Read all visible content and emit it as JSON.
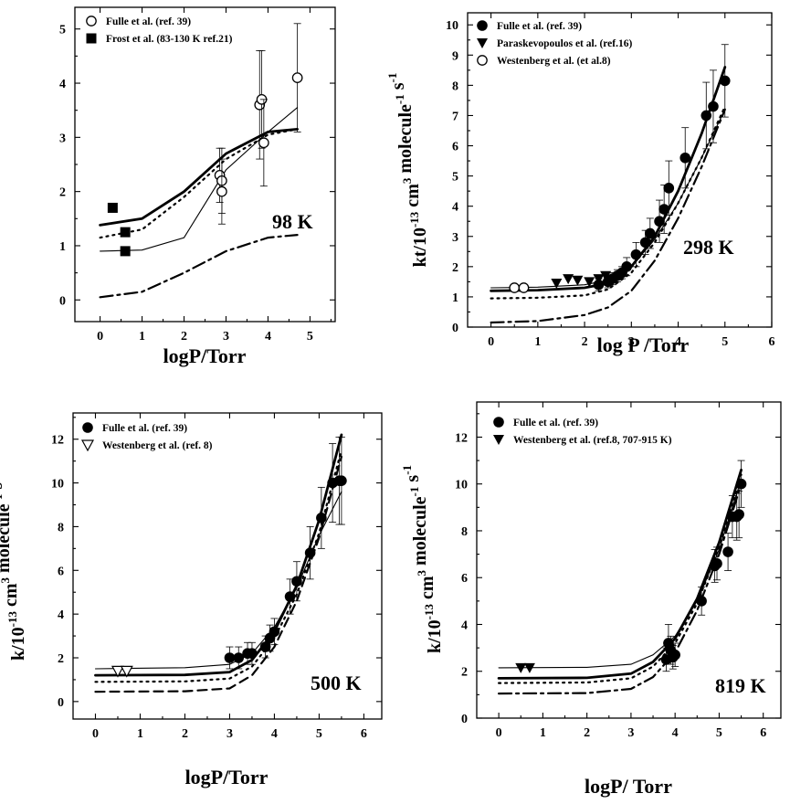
{
  "chart_data": [
    {
      "type": "scatter",
      "temperature": "98 K",
      "xlabel": "logP/Torr",
      "ylabel": "",
      "xlim": [
        -0.6,
        5.6
      ],
      "ylim": [
        -0.4,
        5.4
      ],
      "xticks": [
        0,
        1,
        2,
        3,
        4,
        5
      ],
      "yticks": [
        0,
        1,
        2,
        3,
        4,
        5
      ],
      "legend_position": "top-left",
      "series": [
        {
          "name": "Fulle et al. (ref. 39)",
          "marker": "circle-open",
          "points": [
            [
              2.85,
              2.3,
              0.5
            ],
            [
              2.9,
              2.2,
              0.6
            ],
            [
              2.9,
              2.0,
              0.6
            ],
            [
              3.8,
              3.6,
              1.0
            ],
            [
              3.85,
              3.7,
              0.9
            ],
            [
              3.9,
              2.9,
              0.8
            ],
            [
              4.7,
              4.1,
              1.0
            ]
          ]
        },
        {
          "name": "Frost et al. (83-130 K ref.21)",
          "marker": "square-filled",
          "points": [
            [
              0.3,
              1.7,
              0
            ],
            [
              0.6,
              1.25,
              0
            ],
            [
              0.6,
              0.9,
              0
            ]
          ]
        }
      ],
      "curves": [
        {
          "style": "thick-solid",
          "points": [
            [
              0,
              1.38
            ],
            [
              1,
              1.5
            ],
            [
              2,
              2.0
            ],
            [
              3,
              2.7
            ],
            [
              4,
              3.1
            ],
            [
              4.7,
              3.15
            ]
          ]
        },
        {
          "style": "dotted",
          "points": [
            [
              0,
              1.15
            ],
            [
              1,
              1.3
            ],
            [
              2,
              1.9
            ],
            [
              3,
              2.6
            ],
            [
              4,
              3.05
            ],
            [
              4.7,
              3.15
            ]
          ]
        },
        {
          "style": "thin-solid",
          "points": [
            [
              0,
              0.9
            ],
            [
              1,
              0.92
            ],
            [
              2,
              1.15
            ],
            [
              3,
              2.4
            ],
            [
              4,
              3.1
            ],
            [
              4.7,
              3.55
            ]
          ]
        },
        {
          "style": "dash-dot",
          "points": [
            [
              0,
              0.05
            ],
            [
              1,
              0.15
            ],
            [
              2,
              0.5
            ],
            [
              3,
              0.9
            ],
            [
              4,
              1.15
            ],
            [
              4.7,
              1.2
            ]
          ]
        }
      ]
    },
    {
      "type": "scatter",
      "temperature": "298 K",
      "xlabel": "log P /Torr",
      "ylabel": "kt/10",
      "ylabel_exp1": "-13",
      "ylabel_mid": " cm",
      "ylabel_exp2": "3",
      "ylabel_tail": " molecule",
      "ylabel_exp3": "-1",
      "ylabel_s": "s",
      "ylabel_exp4": "-1",
      "xlim": [
        -0.5,
        6.0
      ],
      "ylim": [
        0,
        10.4
      ],
      "xticks": [
        0,
        1,
        2,
        3,
        4,
        5,
        6
      ],
      "yticks": [
        0,
        1,
        2,
        3,
        4,
        5,
        6,
        7,
        8,
        9,
        10
      ],
      "legend_position": "top-left",
      "series": [
        {
          "name": "Fulle et al. (ref. 39)",
          "marker": "circle-filled",
          "points": [
            [
              2.3,
              1.4,
              0.2
            ],
            [
              2.5,
              1.5,
              0.2
            ],
            [
              2.6,
              1.6,
              0.2
            ],
            [
              2.7,
              1.7,
              0.2
            ],
            [
              2.8,
              1.8,
              0.2
            ],
            [
              2.9,
              2.0,
              0.3
            ],
            [
              3.1,
              2.4,
              0.4
            ],
            [
              3.3,
              2.8,
              0.4
            ],
            [
              3.4,
              3.1,
              0.5
            ],
            [
              3.6,
              3.5,
              0.7
            ],
            [
              3.7,
              3.9,
              0.8
            ],
            [
              3.8,
              4.6,
              0.9
            ],
            [
              4.15,
              5.6,
              1.0
            ],
            [
              4.6,
              7.0,
              1.1
            ],
            [
              4.75,
              7.3,
              1.2
            ],
            [
              5.0,
              8.15,
              1.2
            ]
          ]
        },
        {
          "name": "Paraskevopoulos et al. (ref.16)",
          "marker": "triangle-down-filled",
          "points": [
            [
              1.4,
              1.45,
              0
            ],
            [
              1.65,
              1.6,
              0
            ],
            [
              1.85,
              1.55,
              0
            ],
            [
              2.1,
              1.5,
              0
            ],
            [
              2.3,
              1.6,
              0
            ],
            [
              2.45,
              1.7,
              0
            ],
            [
              2.6,
              1.55,
              0
            ]
          ]
        },
        {
          "name": "Westenberg et al. (et al.8)",
          "marker": "circle-open",
          "points": [
            [
              0.5,
              1.3,
              0
            ],
            [
              0.7,
              1.3,
              0
            ]
          ]
        }
      ],
      "curves": [
        {
          "style": "thick-solid",
          "points": [
            [
              0,
              1.2
            ],
            [
              1,
              1.22
            ],
            [
              2,
              1.3
            ],
            [
              2.5,
              1.45
            ],
            [
              3,
              2.0
            ],
            [
              3.5,
              3.0
            ],
            [
              4,
              4.5
            ],
            [
              4.5,
              6.4
            ],
            [
              5,
              8.6
            ]
          ]
        },
        {
          "style": "thin-solid",
          "points": [
            [
              0,
              1.3
            ],
            [
              1,
              1.32
            ],
            [
              2,
              1.4
            ],
            [
              2.5,
              1.55
            ],
            [
              3,
              2.0
            ],
            [
              3.5,
              2.9
            ],
            [
              4,
              4.1
            ],
            [
              4.5,
              5.6
            ],
            [
              5,
              7.2
            ]
          ]
        },
        {
          "style": "dotted",
          "points": [
            [
              0,
              0.95
            ],
            [
              1,
              0.97
            ],
            [
              2,
              1.05
            ],
            [
              2.5,
              1.25
            ],
            [
              3,
              1.8
            ],
            [
              3.5,
              2.8
            ],
            [
              4,
              4.1
            ],
            [
              4.5,
              5.6
            ],
            [
              5,
              7.3
            ]
          ]
        },
        {
          "style": "dash-dot",
          "points": [
            [
              0,
              0.15
            ],
            [
              1,
              0.2
            ],
            [
              2,
              0.4
            ],
            [
              2.5,
              0.65
            ],
            [
              3,
              1.2
            ],
            [
              3.5,
              2.2
            ],
            [
              4,
              3.6
            ],
            [
              4.5,
              5.3
            ],
            [
              5,
              7.2
            ]
          ]
        }
      ]
    },
    {
      "type": "scatter",
      "temperature": "500 K",
      "xlabel": "logP/Torr",
      "ylabel": "k/10",
      "ylabel_exp1": "-13",
      "ylabel_mid": " cm",
      "ylabel_exp2": "3",
      "ylabel_tail": " molecule",
      "ylabel_exp3": "-1",
      "ylabel_s": "s",
      "ylabel_exp4": "-1",
      "xlim": [
        -0.5,
        6.4
      ],
      "ylim": [
        -0.8,
        13.2
      ],
      "xticks": [
        0,
        1,
        2,
        3,
        4,
        5,
        6
      ],
      "yticks": [
        0,
        2,
        4,
        6,
        8,
        10,
        12
      ],
      "legend_position": "top-left",
      "series": [
        {
          "name": "Fulle et al. (ref. 39)",
          "marker": "circle-filled",
          "points": [
            [
              3.0,
              2.0,
              0.5
            ],
            [
              3.2,
              2.0,
              0.5
            ],
            [
              3.4,
              2.2,
              0.5
            ],
            [
              3.5,
              2.2,
              0.5
            ],
            [
              3.8,
              2.5,
              0.5
            ],
            [
              3.9,
              2.9,
              0.6
            ],
            [
              4.0,
              3.2,
              0.6
            ],
            [
              4.35,
              4.8,
              0.8
            ],
            [
              4.5,
              5.5,
              0.9
            ],
            [
              4.8,
              6.8,
              1.2
            ],
            [
              5.05,
              8.4,
              1.4
            ],
            [
              5.3,
              10.0,
              1.8
            ],
            [
              5.45,
              10.1,
              2.0
            ],
            [
              5.5,
              10.1,
              2.0
            ]
          ]
        },
        {
          "name": "Westenberg et al. (ref. 8)",
          "marker": "triangle-down-open",
          "points": [
            [
              0.5,
              1.4,
              0
            ],
            [
              0.7,
              1.4,
              0
            ]
          ]
        }
      ],
      "curves": [
        {
          "style": "thin-solid",
          "points": [
            [
              0,
              1.5
            ],
            [
              2,
              1.55
            ],
            [
              3,
              1.7
            ],
            [
              3.5,
              2.2
            ],
            [
              4,
              3.4
            ],
            [
              4.5,
              5.2
            ],
            [
              5,
              7.6
            ],
            [
              5.5,
              9.6
            ]
          ]
        },
        {
          "style": "thick-solid",
          "points": [
            [
              0,
              1.2
            ],
            [
              2,
              1.22
            ],
            [
              3,
              1.35
            ],
            [
              3.5,
              1.9
            ],
            [
              4,
              3.2
            ],
            [
              4.5,
              5.3
            ],
            [
              5,
              8.3
            ],
            [
              5.5,
              12.2
            ]
          ]
        },
        {
          "style": "dotted",
          "points": [
            [
              0,
              0.9
            ],
            [
              2,
              0.92
            ],
            [
              3,
              1.05
            ],
            [
              3.5,
              1.6
            ],
            [
              4,
              2.9
            ],
            [
              4.5,
              4.9
            ],
            [
              5,
              7.7
            ],
            [
              5.5,
              11.5
            ]
          ]
        },
        {
          "style": "dashed",
          "points": [
            [
              0,
              0.45
            ],
            [
              2,
              0.47
            ],
            [
              3,
              0.6
            ],
            [
              3.5,
              1.2
            ],
            [
              4,
              2.5
            ],
            [
              4.5,
              4.6
            ],
            [
              5,
              7.5
            ],
            [
              5.5,
              11.2
            ]
          ]
        }
      ]
    },
    {
      "type": "scatter",
      "temperature": "819 K",
      "xlabel": "logP/ Torr",
      "ylabel": "k/10",
      "ylabel_exp1": "-13",
      "ylabel_mid": " cm",
      "ylabel_exp2": "3",
      "ylabel_tail": " molecule",
      "ylabel_exp3": "-1",
      "ylabel_s": "s",
      "ylabel_exp4": "-1",
      "xlim": [
        -0.5,
        6.4
      ],
      "ylim": [
        0,
        13.5
      ],
      "xticks": [
        0,
        1,
        2,
        3,
        4,
        5,
        6
      ],
      "yticks": [
        0,
        2,
        4,
        6,
        8,
        10,
        12
      ],
      "legend_position": "top-left",
      "series": [
        {
          "name": "Fulle et al. (ref. 39)",
          "marker": "circle-filled",
          "points": [
            [
              3.8,
              2.5,
              0.5
            ],
            [
              3.85,
              3.2,
              0.8
            ],
            [
              3.9,
              2.9,
              0.6
            ],
            [
              3.95,
              2.6,
              0.5
            ],
            [
              4.0,
              2.7,
              0.5
            ],
            [
              4.6,
              5.0,
              0.6
            ],
            [
              4.9,
              6.5,
              0.7
            ],
            [
              4.95,
              6.6,
              0.7
            ],
            [
              5.2,
              7.1,
              0.8
            ],
            [
              5.3,
              8.6,
              0.9
            ],
            [
              5.4,
              8.6,
              1.0
            ],
            [
              5.45,
              8.7,
              1.0
            ],
            [
              5.5,
              10.0,
              1.0
            ]
          ]
        },
        {
          "name": "Westenberg et al. (ref.8, 707-915 K)",
          "marker": "triangle-down-filled",
          "points": [
            [
              0.5,
              2.15,
              0
            ],
            [
              0.7,
              2.15,
              0
            ]
          ]
        }
      ],
      "curves": [
        {
          "style": "thin-solid",
          "points": [
            [
              0,
              2.15
            ],
            [
              2,
              2.17
            ],
            [
              3,
              2.3
            ],
            [
              3.5,
              2.7
            ],
            [
              4,
              3.5
            ],
            [
              4.5,
              5.0
            ],
            [
              5,
              7.2
            ],
            [
              5.5,
              10.2
            ]
          ]
        },
        {
          "style": "thick-solid",
          "points": [
            [
              0,
              1.7
            ],
            [
              2,
              1.72
            ],
            [
              3,
              1.9
            ],
            [
              3.5,
              2.4
            ],
            [
              4,
              3.4
            ],
            [
              4.5,
              5.1
            ],
            [
              5,
              7.5
            ],
            [
              5.5,
              10.6
            ]
          ]
        },
        {
          "style": "dotted",
          "points": [
            [
              0,
              1.5
            ],
            [
              2,
              1.52
            ],
            [
              3,
              1.7
            ],
            [
              3.5,
              2.2
            ],
            [
              4,
              3.2
            ],
            [
              4.5,
              4.9
            ],
            [
              5,
              7.3
            ],
            [
              5.5,
              10.4
            ]
          ]
        },
        {
          "style": "dash-dot",
          "points": [
            [
              0,
              1.05
            ],
            [
              2,
              1.07
            ],
            [
              3,
              1.25
            ],
            [
              3.5,
              1.75
            ],
            [
              4,
              2.8
            ],
            [
              4.5,
              4.6
            ],
            [
              5,
              7.0
            ],
            [
              5.5,
              10.0
            ]
          ]
        }
      ]
    }
  ]
}
